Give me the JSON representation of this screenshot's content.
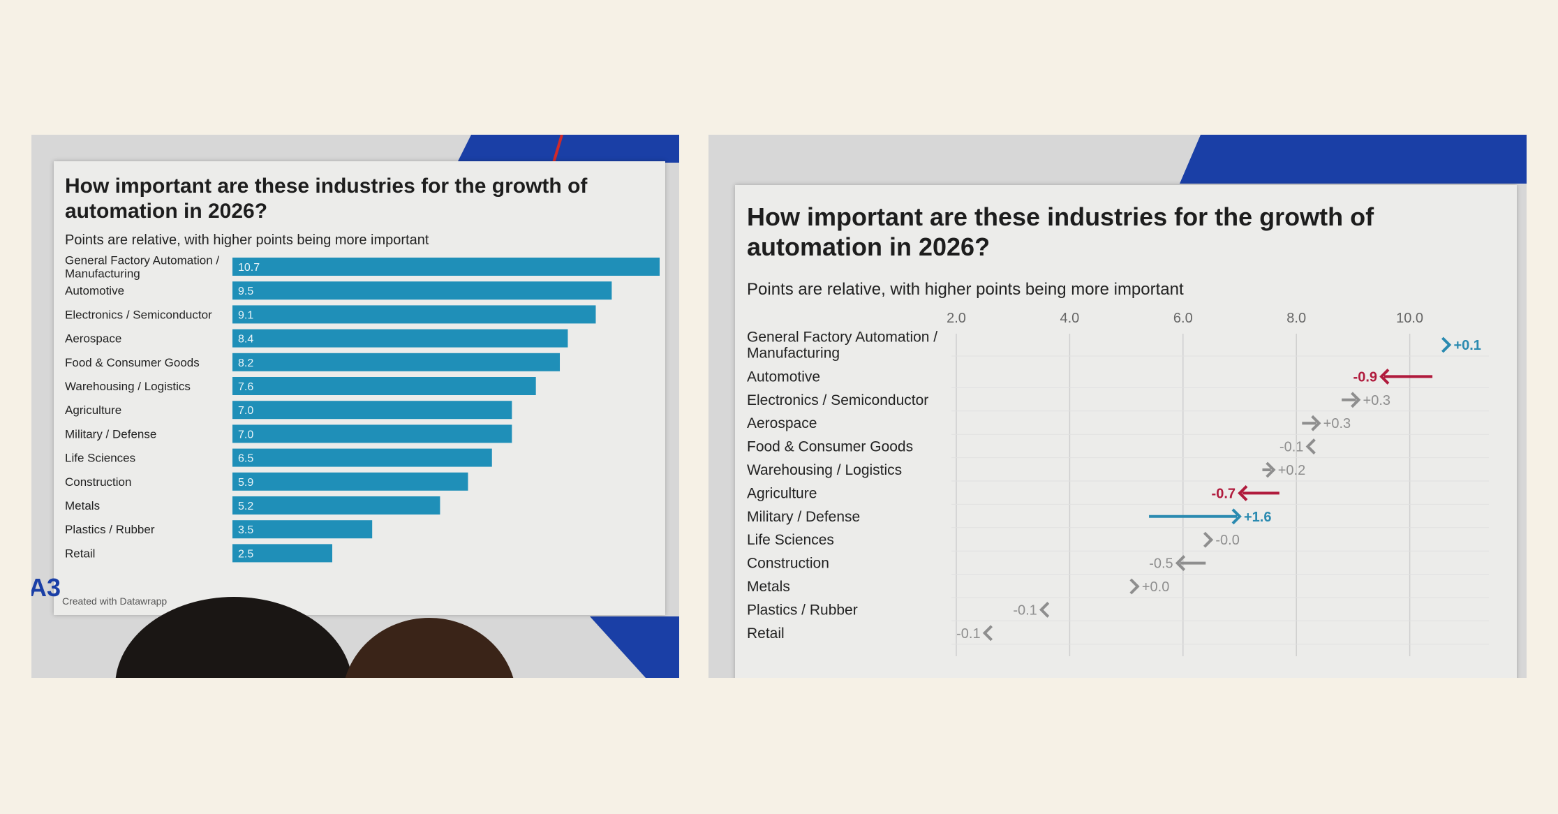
{
  "colors": {
    "bar": "#1f8fb8",
    "positive_arrow": "#2a8ab0",
    "negative_arrow": "#b01a3c",
    "neutral_arrow": "#8e8e8e",
    "background": "#f6f1e6"
  },
  "left_slide": {
    "title": "How important are these industries for the growth of\nautomation in 2026?",
    "subtitle": "Points are relative, with higher points being more important",
    "footer": "Created with Datawrapp",
    "logo_fragment": "A3"
  },
  "right_slide": {
    "title": "How important are these industries for the growth of\nautomation in 2026?",
    "subtitle": "Points are relative, with higher points being more important"
  },
  "chart_data": [
    {
      "type": "bar",
      "orientation": "horizontal",
      "title": "How important are these industries for the growth of automation in 2026?",
      "subtitle": "Points are relative, with higher points being more important",
      "categories": [
        "General Factory Automation /\nManufacturing",
        "Automotive",
        "Electronics / Semiconductor",
        "Aerospace",
        "Food & Consumer Goods",
        "Warehousing / Logistics",
        "Agriculture",
        "Military / Defense",
        "Life Sciences",
        "Construction",
        "Metals",
        "Plastics / Rubber",
        "Retail"
      ],
      "values": [
        10.7,
        9.5,
        9.1,
        8.4,
        8.2,
        7.6,
        7.0,
        7.0,
        6.5,
        5.9,
        5.2,
        3.5,
        2.5
      ],
      "value_labels": [
        "10.7",
        "9.5",
        "9.1",
        "8.4",
        "8.2",
        "7.6",
        "7.0",
        "7.0",
        "6.5",
        "5.9",
        "5.2",
        "3.5",
        "2.5"
      ],
      "xlim": [
        0,
        10.7
      ]
    },
    {
      "type": "arrow",
      "title": "How important are these industries for the growth of automation in 2026?",
      "subtitle": "Points are relative, with higher points being more important",
      "categories": [
        "General Factory Automation /\nManufacturing",
        "Automotive",
        "Electronics / Semiconductor",
        "Aerospace",
        "Food & Consumer Goods",
        "Warehousing / Logistics",
        "Agriculture",
        "Military / Defense",
        "Life Sciences",
        "Construction",
        "Metals",
        "Plastics / Rubber",
        "Retail"
      ],
      "x_ticks": [
        "2.0",
        "4.0",
        "6.0",
        "8.0",
        "10.0"
      ],
      "xlim": [
        2.0,
        11.4
      ],
      "start": [
        10.6,
        10.4,
        8.8,
        8.1,
        8.3,
        7.4,
        7.7,
        5.4,
        6.5,
        6.4,
        5.2,
        3.6,
        2.6
      ],
      "end": [
        10.7,
        9.5,
        9.1,
        8.4,
        8.2,
        7.6,
        7.0,
        7.0,
        6.5,
        5.9,
        5.2,
        3.5,
        2.5
      ],
      "changes": [
        "+0.1",
        "-0.9",
        "+0.3",
        "+0.3",
        "-0.1",
        "+0.2",
        "-0.7",
        "+1.6",
        "-0.0",
        "-0.5",
        "+0.0",
        "-0.1",
        "-0.1"
      ],
      "emphasis": [
        "positive",
        "negative",
        "neutral",
        "neutral",
        "neutral",
        "neutral",
        "negative",
        "positive",
        "neutral",
        "neutral",
        "neutral",
        "neutral",
        "neutral"
      ]
    }
  ]
}
